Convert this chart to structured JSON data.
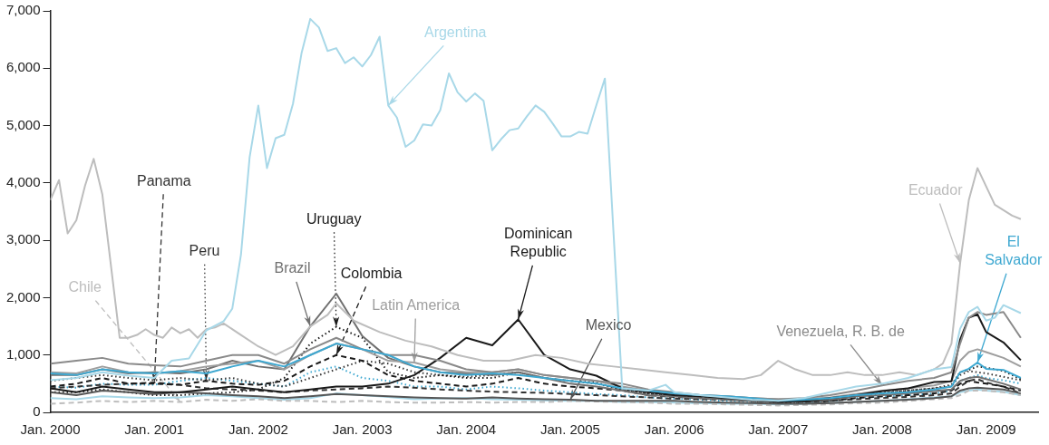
{
  "chart_data": {
    "type": "line",
    "x": [
      "2000-01",
      "2000-04",
      "2000-07",
      "2000-10",
      "2001-01",
      "2001-04",
      "2001-07",
      "2001-10",
      "2002-01",
      "2002-04",
      "2002-07",
      "2002-10",
      "2003-01",
      "2003-04",
      "2003-07",
      "2003-10",
      "2004-01",
      "2004-04",
      "2004-07",
      "2004-10",
      "2005-01",
      "2005-04",
      "2005-07",
      "2005-10",
      "2006-01",
      "2006-04",
      "2006-07",
      "2006-10",
      "2007-01",
      "2007-04",
      "2007-07",
      "2007-10",
      "2008-01",
      "2008-04",
      "2008-07",
      "2008-09",
      "2008-10",
      "2008-11",
      "2008-12",
      "2009-01",
      "2009-03",
      "2009-05"
    ],
    "xlim": [
      "2000-01",
      "2009-07"
    ],
    "xticks": [
      {
        "value": "2000-01",
        "label": "Jan. 2000"
      },
      {
        "value": "2001-01",
        "label": "Jan. 2001"
      },
      {
        "value": "2002-01",
        "label": "Jan. 2002"
      },
      {
        "value": "2003-01",
        "label": "Jan. 2003"
      },
      {
        "value": "2004-01",
        "label": "Jan. 2004"
      },
      {
        "value": "2005-01",
        "label": "Jan. 2005"
      },
      {
        "value": "2006-01",
        "label": "Jan. 2006"
      },
      {
        "value": "2007-01",
        "label": "Jan. 2007"
      },
      {
        "value": "2008-01",
        "label": "Jan. 2008"
      },
      {
        "value": "2009-01",
        "label": "Jan. 2009"
      }
    ],
    "ylim": [
      0,
      7000
    ],
    "yticks": [
      0,
      {
        "value": 1000,
        "label": "1,000"
      },
      {
        "value": 2000,
        "label": "2,000"
      },
      {
        "value": 3000,
        "label": "3,000"
      },
      {
        "value": 4000,
        "label": "4,000"
      },
      {
        "value": 5000,
        "label": "5,000"
      },
      {
        "value": 6000,
        "label": "6,000"
      },
      {
        "value": 7000,
        "label": "7,000"
      }
    ],
    "grid": false,
    "legend": false,
    "series": [
      {
        "name": "Argentina",
        "color": "#a8d8e8",
        "line_style": "solid",
        "x": [
          "2000-01",
          "2000-04",
          "2000-07",
          "2000-10",
          "2001-01",
          "2001-03",
          "2001-05",
          "2001-07",
          "2001-09",
          "2001-10",
          "2001-11",
          "2001-12",
          "2002-01",
          "2002-02",
          "2002-03",
          "2002-04",
          "2002-05",
          "2002-06",
          "2002-07",
          "2002-08",
          "2002-09",
          "2002-10",
          "2002-11",
          "2002-12",
          "2003-01",
          "2003-02",
          "2003-03",
          "2003-04",
          "2003-05",
          "2003-06",
          "2003-07",
          "2003-08",
          "2003-09",
          "2003-10",
          "2003-11",
          "2003-12",
          "2004-01",
          "2004-02",
          "2004-03",
          "2004-04",
          "2004-05",
          "2004-06",
          "2004-07",
          "2004-08",
          "2004-09",
          "2004-10",
          "2004-11",
          "2004-12",
          "2005-01",
          "2005-02",
          "2005-03",
          "2005-04",
          "2005-05",
          "2005-07",
          "2005-10",
          "2005-12",
          "2006-01",
          "2006-04",
          "2006-07",
          "2006-10",
          "2007-01",
          "2007-04",
          "2007-07",
          "2007-10",
          "2008-01",
          "2008-04",
          "2008-07",
          "2008-09",
          "2008-10",
          "2008-11",
          "2008-12",
          "2009-01",
          "2009-02",
          "2009-03",
          "2009-05"
        ],
        "values": [
          560,
          600,
          700,
          640,
          600,
          900,
          940,
          1430,
          1590,
          1810,
          2750,
          4450,
          5350,
          4260,
          4780,
          4840,
          5380,
          6270,
          6860,
          6710,
          6300,
          6350,
          6090,
          6190,
          6030,
          6230,
          6550,
          5350,
          5140,
          4630,
          4740,
          5020,
          5000,
          5270,
          5910,
          5580,
          5420,
          5560,
          5430,
          4570,
          4760,
          4920,
          4950,
          5160,
          5350,
          5240,
          5030,
          4810,
          4810,
          4890,
          4860,
          5350,
          5820,
          420,
          380,
          480,
          350,
          300,
          260,
          220,
          200,
          250,
          350,
          450,
          500,
          600,
          750,
          790,
          1460,
          1750,
          1840,
          1600,
          1650,
          1870,
          1730
        ]
      },
      {
        "name": "Ecuador",
        "color": "#bdbdbd",
        "line_style": "solid",
        "x": [
          "2000-01",
          "2000-02",
          "2000-03",
          "2000-04",
          "2000-05",
          "2000-06",
          "2000-07",
          "2000-09",
          "2000-10",
          "2000-11",
          "2000-12",
          "2001-01",
          "2001-02",
          "2001-03",
          "2001-04",
          "2001-05",
          "2001-06",
          "2001-07",
          "2001-08",
          "2001-09",
          "2001-11",
          "2002-01",
          "2002-03",
          "2002-05",
          "2002-07",
          "2002-09",
          "2002-10",
          "2002-12",
          "2003-03",
          "2003-06",
          "2003-09",
          "2003-12",
          "2004-03",
          "2004-06",
          "2004-09",
          "2004-12",
          "2005-03",
          "2005-06",
          "2005-09",
          "2005-12",
          "2006-03",
          "2006-06",
          "2006-09",
          "2006-11",
          "2007-01",
          "2007-03",
          "2007-05",
          "2007-07",
          "2007-09",
          "2007-11",
          "2008-01",
          "2008-03",
          "2008-05",
          "2008-07",
          "2008-08",
          "2008-09",
          "2008-10",
          "2008-11",
          "2008-12",
          "2009-02",
          "2009-04",
          "2009-05"
        ],
        "values": [
          3700,
          4050,
          3120,
          3350,
          3950,
          4420,
          3800,
          1300,
          1300,
          1350,
          1450,
          1350,
          1300,
          1480,
          1380,
          1450,
          1300,
          1450,
          1480,
          1550,
          1350,
          1150,
          1000,
          1150,
          1500,
          1700,
          1900,
          1600,
          1400,
          1250,
          1150,
          1000,
          900,
          900,
          1000,
          950,
          850,
          800,
          750,
          700,
          650,
          600,
          580,
          650,
          900,
          750,
          650,
          650,
          700,
          650,
          650,
          700,
          650,
          750,
          850,
          1200,
          2600,
          3700,
          4260,
          3620,
          3430,
          3370
        ]
      },
      {
        "name": "El Salvador",
        "color": "#3ea8d1",
        "line_style": "solid",
        "values": [
          680,
          650,
          750,
          700,
          680,
          720,
          680,
          800,
          900,
          800,
          1000,
          1200,
          1100,
          1000,
          800,
          700,
          650,
          680,
          650,
          600,
          550,
          500,
          420,
          380,
          330,
          300,
          280,
          250,
          200,
          220,
          250,
          300,
          330,
          350,
          400,
          450,
          700,
          760,
          870,
          760,
          740,
          600
        ]
      },
      {
        "name": "Venezuela, R. B. de",
        "color": "#8a8a8a",
        "line_style": "solid",
        "values": [
          850,
          900,
          950,
          850,
          820,
          800,
          900,
          1000,
          1000,
          850,
          1100,
          1300,
          1100,
          1000,
          1000,
          900,
          750,
          700,
          750,
          650,
          600,
          550,
          500,
          400,
          350,
          300,
          280,
          250,
          230,
          250,
          300,
          380,
          470,
          550,
          600,
          700,
          1200,
          1650,
          1750,
          1700,
          1750,
          1300
        ]
      },
      {
        "name": "Dominican Republic",
        "color": "#1a1a1a",
        "line_style": "solid",
        "values": [
          420,
          350,
          450,
          400,
          350,
          350,
          400,
          450,
          400,
          350,
          400,
          450,
          450,
          500,
          650,
          950,
          1300,
          1170,
          1620,
          1000,
          750,
          640,
          420,
          350,
          300,
          280,
          250,
          230,
          180,
          200,
          250,
          300,
          370,
          420,
          530,
          540,
          1270,
          1650,
          1710,
          1400,
          1220,
          910
        ]
      },
      {
        "name": "Mexico",
        "color": "#555555",
        "line_style": "solid",
        "values": [
          350,
          300,
          380,
          350,
          320,
          350,
          330,
          300,
          280,
          250,
          280,
          320,
          300,
          280,
          260,
          250,
          240,
          260,
          240,
          230,
          220,
          200,
          200,
          200,
          200,
          180,
          170,
          160,
          150,
          150,
          160,
          180,
          200,
          220,
          250,
          280,
          380,
          420,
          430,
          420,
          400,
          330
        ]
      },
      {
        "name": "Latin America",
        "color": "#9e9e9e",
        "line_style": "solid",
        "values": [
          700,
          680,
          800,
          700,
          680,
          720,
          800,
          850,
          900,
          750,
          1000,
          1200,
          1100,
          900,
          870,
          750,
          700,
          700,
          750,
          650,
          600,
          550,
          450,
          380,
          320,
          300,
          280,
          250,
          230,
          230,
          260,
          320,
          380,
          420,
          470,
          550,
          900,
          1050,
          1100,
          1050,
          950,
          800
        ]
      },
      {
        "name": "Brazil",
        "color": "#707070",
        "line_style": "solid",
        "values": [
          650,
          650,
          750,
          680,
          700,
          680,
          750,
          900,
          800,
          750,
          1500,
          2070,
          1330,
          950,
          800,
          700,
          680,
          650,
          700,
          600,
          500,
          450,
          380,
          300,
          280,
          250,
          230,
          200,
          180,
          200,
          220,
          280,
          300,
          330,
          370,
          400,
          550,
          600,
          620,
          580,
          500,
          400
        ]
      },
      {
        "name": "Uruguay",
        "color": "#1a1a1a",
        "line_style": "dotted",
        "values": [
          350,
          350,
          400,
          350,
          300,
          300,
          330,
          350,
          400,
          600,
          1200,
          1490,
          1300,
          700,
          600,
          650,
          600,
          600,
          700,
          600,
          550,
          500,
          400,
          330,
          300,
          250,
          230,
          200,
          170,
          180,
          220,
          280,
          330,
          380,
          420,
          480,
          700,
          740,
          800,
          780,
          720,
          580
        ]
      },
      {
        "name": "Colombia",
        "color": "#1a1a1a",
        "line_style": "dashed",
        "values": [
          450,
          500,
          600,
          500,
          500,
          480,
          550,
          500,
          480,
          550,
          800,
          1000,
          900,
          650,
          550,
          500,
          450,
          500,
          600,
          500,
          450,
          420,
          380,
          300,
          270,
          250,
          230,
          200,
          180,
          180,
          200,
          250,
          280,
          300,
          330,
          380,
          500,
          550,
          520,
          500,
          450,
          380
        ]
      },
      {
        "name": "Peru",
        "color": "#333333",
        "line_style": "dotted",
        "values": [
          550,
          600,
          650,
          600,
          560,
          600,
          560,
          600,
          500,
          450,
          600,
          750,
          900,
          850,
          700,
          650,
          620,
          650,
          700,
          600,
          550,
          520,
          400,
          330,
          300,
          280,
          250,
          230,
          200,
          200,
          230,
          300,
          350,
          380,
          420,
          450,
          650,
          720,
          700,
          680,
          620,
          560
        ]
      },
      {
        "name": "Panama",
        "color": "#333333",
        "line_style": "dashed",
        "values": [
          420,
          450,
          480,
          500,
          520,
          480,
          420,
          400,
          380,
          350,
          380,
          400,
          420,
          450,
          430,
          400,
          380,
          360,
          350,
          340,
          320,
          300,
          280,
          260,
          240,
          230,
          220,
          200,
          180,
          190,
          200,
          230,
          250,
          270,
          300,
          330,
          450,
          550,
          580,
          520,
          450,
          330
        ]
      },
      {
        "name": "Chile",
        "color": "#bdbdbd",
        "line_style": "dashed",
        "values": [
          150,
          170,
          200,
          180,
          200,
          180,
          220,
          200,
          230,
          200,
          200,
          180,
          200,
          180,
          170,
          170,
          180,
          170,
          180,
          180,
          200,
          190,
          180,
          170,
          150,
          150,
          140,
          130,
          120,
          130,
          140,
          160,
          170,
          200,
          230,
          250,
          300,
          380,
          380,
          380,
          350,
          300
        ]
      },
      {
        "color": "#3ea8d1",
        "line_style": "dotted",
        "values": [
          450,
          430,
          500,
          480,
          480,
          550,
          600,
          550,
          500,
          450,
          700,
          800,
          600,
          550,
          450,
          450,
          400,
          450,
          420,
          380,
          350,
          320,
          300,
          260,
          240,
          220,
          200,
          190,
          180,
          180,
          200,
          250,
          280,
          300,
          330,
          380,
          550,
          600,
          650,
          600,
          560,
          500
        ]
      },
      {
        "color": "#a8d8e8",
        "line_style": "solid",
        "values": [
          250,
          230,
          280,
          260,
          250,
          260,
          300,
          280,
          250,
          220,
          250,
          330,
          300,
          270,
          230,
          240,
          250,
          230,
          220,
          210,
          200,
          200,
          180,
          180,
          170,
          160,
          150,
          150,
          140,
          150,
          160,
          180,
          200,
          230,
          260,
          280,
          350,
          380,
          400,
          380,
          360,
          300
        ]
      }
    ]
  }
}
